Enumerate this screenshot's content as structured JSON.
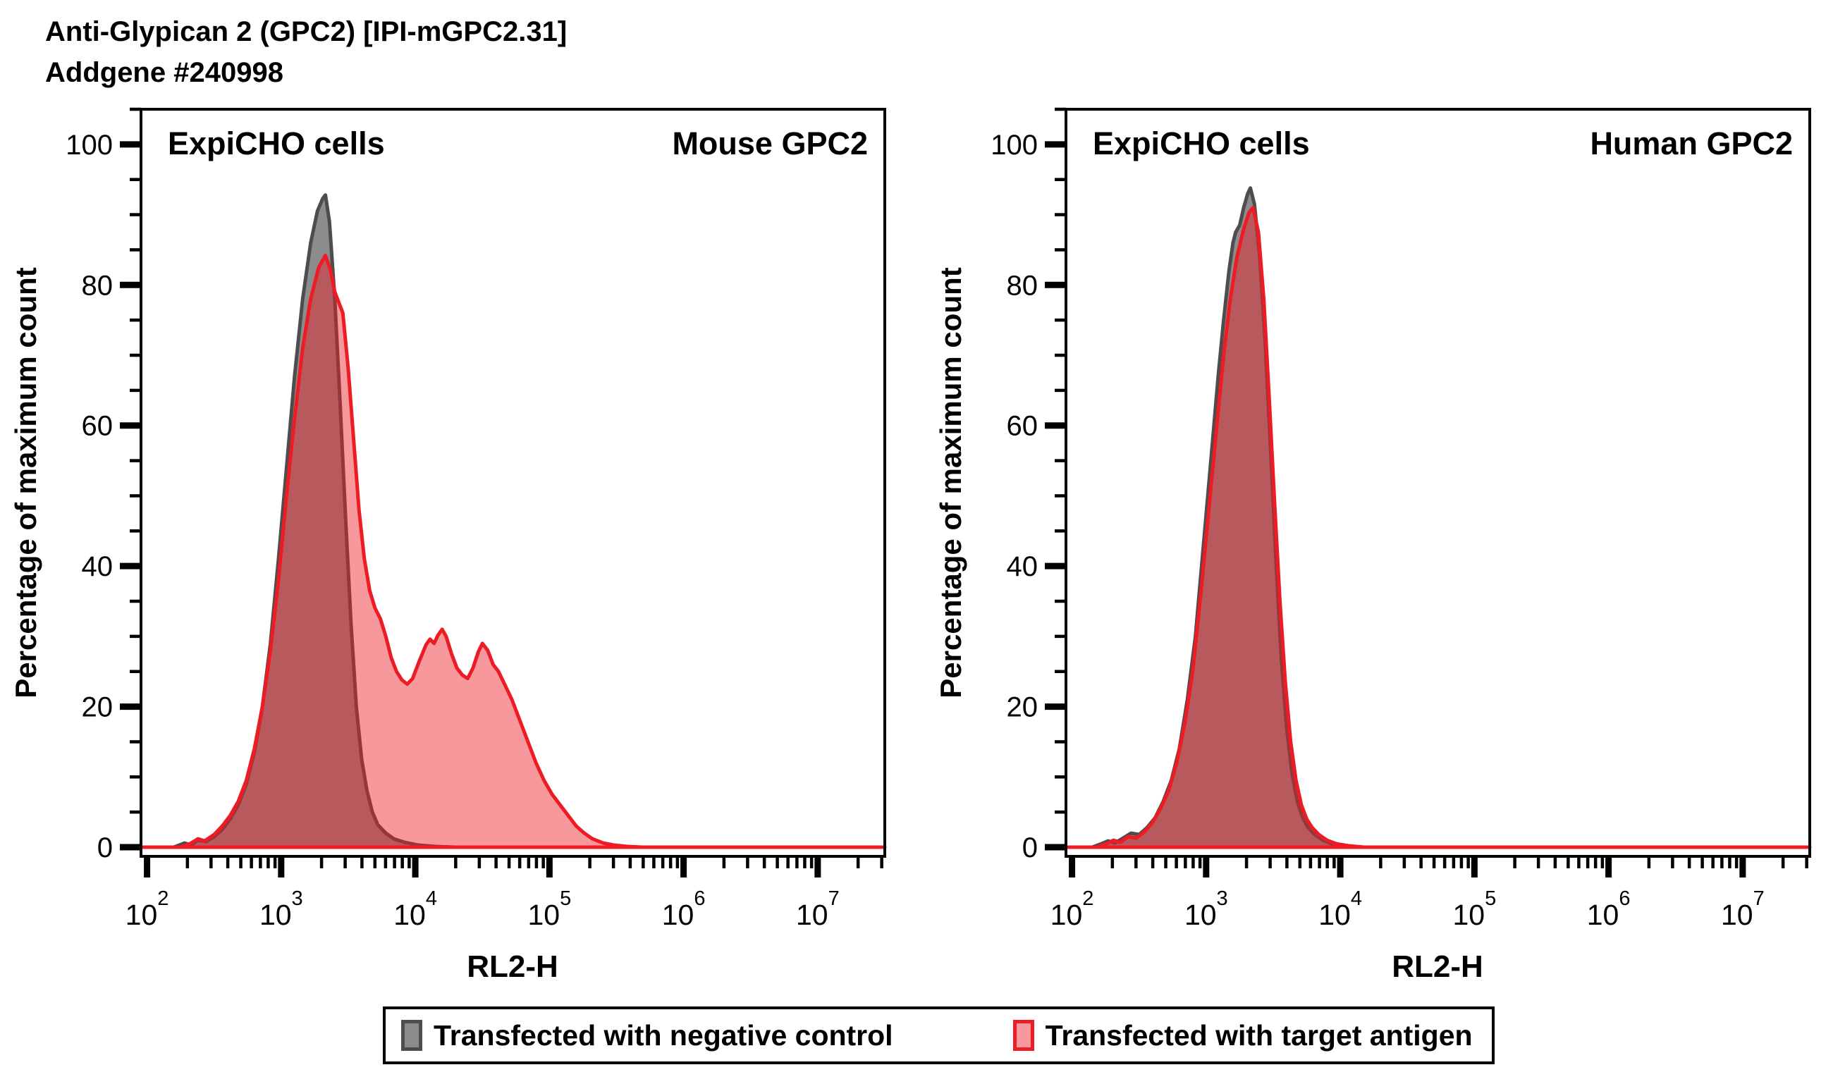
{
  "title": {
    "line1": "Anti-Glypican 2 (GPC2) [IPI-mGPC2.31]",
    "line2": "Addgene #240998"
  },
  "legend": {
    "items": [
      {
        "label": "Transfected with negative control",
        "fill": "#8c8c8c",
        "stroke": "#4d4d4d"
      },
      {
        "label": "Transfected with target antigen",
        "fill": "#f7999c",
        "stroke": "#ed1c24"
      }
    ]
  },
  "chart_data": [
    {
      "type": "area",
      "panel": "left",
      "label_left": "ExpiCHO cells",
      "label_right": "Mouse GPC2",
      "xlabel": "RL2-H",
      "ylabel": "Percentage of maximum count",
      "x_scale": "log10",
      "xlim_log10": [
        1.955,
        7.5
      ],
      "x_major_decades": [
        2,
        3,
        4,
        5,
        6,
        7
      ],
      "ylim": [
        -1.3,
        105
      ],
      "y_ticks": [
        0,
        20,
        40,
        60,
        80,
        100
      ],
      "y_minor_step": 5,
      "grid": false,
      "series": [
        {
          "name": "Transfected with negative control",
          "fill": "rgba(70,70,70,0.62)",
          "stroke": "#4d4d4d",
          "stroke_width": 5,
          "points": [
            [
              1.955,
              0
            ],
            [
              2.2,
              0
            ],
            [
              2.28,
              0.6
            ],
            [
              2.33,
              0.3
            ],
            [
              2.38,
              1.0
            ],
            [
              2.44,
              0.8
            ],
            [
              2.5,
              1.5
            ],
            [
              2.56,
              2.5
            ],
            [
              2.62,
              4
            ],
            [
              2.68,
              6
            ],
            [
              2.74,
              9
            ],
            [
              2.8,
              13.5
            ],
            [
              2.86,
              20
            ],
            [
              2.92,
              29
            ],
            [
              2.98,
              41
            ],
            [
              3.04,
              54
            ],
            [
              3.1,
              67
            ],
            [
              3.16,
              78
            ],
            [
              3.22,
              86
            ],
            [
              3.27,
              90.5
            ],
            [
              3.31,
              92.3
            ],
            [
              3.33,
              92.8
            ],
            [
              3.36,
              89
            ],
            [
              3.4,
              78
            ],
            [
              3.44,
              63
            ],
            [
              3.48,
              47
            ],
            [
              3.52,
              32
            ],
            [
              3.56,
              20
            ],
            [
              3.6,
              12.5
            ],
            [
              3.64,
              8
            ],
            [
              3.68,
              5
            ],
            [
              3.72,
              3.2
            ],
            [
              3.78,
              2
            ],
            [
              3.84,
              1.2
            ],
            [
              3.92,
              0.7
            ],
            [
              4.02,
              0.3
            ],
            [
              4.15,
              0.1
            ],
            [
              4.3,
              0
            ],
            [
              7.5,
              0
            ]
          ]
        },
        {
          "name": "Transfected with target antigen",
          "fill": "rgba(237,28,36,0.45)",
          "stroke": "#ed1c24",
          "stroke_width": 5,
          "points": [
            [
              1.955,
              0
            ],
            [
              2.25,
              0
            ],
            [
              2.32,
              0.5
            ],
            [
              2.38,
              1.2
            ],
            [
              2.43,
              0.9
            ],
            [
              2.5,
              1.8
            ],
            [
              2.56,
              3
            ],
            [
              2.62,
              4.5
            ],
            [
              2.68,
              6.5
            ],
            [
              2.74,
              9.5
            ],
            [
              2.8,
              14
            ],
            [
              2.86,
              20
            ],
            [
              2.92,
              28
            ],
            [
              2.98,
              38
            ],
            [
              3.04,
              50
            ],
            [
              3.1,
              61
            ],
            [
              3.16,
              71
            ],
            [
              3.22,
              78
            ],
            [
              3.28,
              82.5
            ],
            [
              3.33,
              84.2
            ],
            [
              3.37,
              82
            ],
            [
              3.4,
              79
            ],
            [
              3.43,
              77.5
            ],
            [
              3.46,
              76
            ],
            [
              3.5,
              68
            ],
            [
              3.54,
              58
            ],
            [
              3.58,
              48
            ],
            [
              3.62,
              41
            ],
            [
              3.66,
              36.5
            ],
            [
              3.7,
              34
            ],
            [
              3.74,
              32.5
            ],
            [
              3.78,
              30
            ],
            [
              3.82,
              27
            ],
            [
              3.86,
              25
            ],
            [
              3.9,
              23.8
            ],
            [
              3.94,
              23.2
            ],
            [
              3.98,
              24
            ],
            [
              4.03,
              26.5
            ],
            [
              4.08,
              28.8
            ],
            [
              4.11,
              29.6
            ],
            [
              4.14,
              29
            ],
            [
              4.17,
              30.2
            ],
            [
              4.2,
              31
            ],
            [
              4.23,
              30
            ],
            [
              4.27,
              27.5
            ],
            [
              4.31,
              25.5
            ],
            [
              4.35,
              24.5
            ],
            [
              4.39,
              24
            ],
            [
              4.43,
              25.5
            ],
            [
              4.47,
              27.8
            ],
            [
              4.5,
              29
            ],
            [
              4.54,
              28
            ],
            [
              4.58,
              26
            ],
            [
              4.62,
              25
            ],
            [
              4.67,
              23
            ],
            [
              4.72,
              21
            ],
            [
              4.78,
              18
            ],
            [
              4.84,
              15
            ],
            [
              4.9,
              12
            ],
            [
              4.96,
              9.5
            ],
            [
              5.02,
              7.5
            ],
            [
              5.08,
              6
            ],
            [
              5.14,
              4.5
            ],
            [
              5.2,
              3
            ],
            [
              5.26,
              2
            ],
            [
              5.32,
              1.2
            ],
            [
              5.4,
              0.6
            ],
            [
              5.48,
              0.3
            ],
            [
              5.58,
              0.1
            ],
            [
              5.7,
              0
            ],
            [
              7.5,
              0
            ]
          ]
        }
      ]
    },
    {
      "type": "area",
      "panel": "right",
      "label_left": "ExpiCHO cells",
      "label_right": "Human GPC2",
      "xlabel": "RL2-H",
      "ylabel": "Percentage of maximum count",
      "x_scale": "log10",
      "xlim_log10": [
        1.955,
        7.5
      ],
      "x_major_decades": [
        2,
        3,
        4,
        5,
        6,
        7
      ],
      "ylim": [
        -1.3,
        105
      ],
      "y_ticks": [
        0,
        20,
        40,
        60,
        80,
        100
      ],
      "y_minor_step": 5,
      "grid": false,
      "series": [
        {
          "name": "Transfected with negative control",
          "fill": "rgba(70,70,70,0.62)",
          "stroke": "#4d4d4d",
          "stroke_width": 5,
          "points": [
            [
              1.955,
              0
            ],
            [
              2.15,
              0
            ],
            [
              2.22,
              0.5
            ],
            [
              2.27,
              0.9
            ],
            [
              2.32,
              0.6
            ],
            [
              2.38,
              1.3
            ],
            [
              2.44,
              2
            ],
            [
              2.5,
              1.8
            ],
            [
              2.56,
              2.8
            ],
            [
              2.62,
              4.2
            ],
            [
              2.68,
              6.5
            ],
            [
              2.74,
              9.5
            ],
            [
              2.8,
              14
            ],
            [
              2.86,
              21
            ],
            [
              2.92,
              30
            ],
            [
              2.98,
              43
            ],
            [
              3.04,
              56
            ],
            [
              3.09,
              67
            ],
            [
              3.13,
              75
            ],
            [
              3.17,
              82
            ],
            [
              3.2,
              86
            ],
            [
              3.22,
              87.5
            ],
            [
              3.25,
              88.5
            ],
            [
              3.28,
              91
            ],
            [
              3.31,
              93
            ],
            [
              3.33,
              93.8
            ],
            [
              3.36,
              91.5
            ],
            [
              3.4,
              84
            ],
            [
              3.44,
              72
            ],
            [
              3.48,
              57
            ],
            [
              3.52,
              41
            ],
            [
              3.56,
              27
            ],
            [
              3.6,
              17
            ],
            [
              3.64,
              10.5
            ],
            [
              3.68,
              6.5
            ],
            [
              3.72,
              4.2
            ],
            [
              3.76,
              2.8
            ],
            [
              3.81,
              1.8
            ],
            [
              3.87,
              1.0
            ],
            [
              3.94,
              0.5
            ],
            [
              4.03,
              0.2
            ],
            [
              4.15,
              0
            ],
            [
              7.5,
              0
            ]
          ]
        },
        {
          "name": "Transfected with target antigen",
          "fill": "rgba(237,28,36,0.45)",
          "stroke": "#ed1c24",
          "stroke_width": 5,
          "points": [
            [
              1.955,
              0
            ],
            [
              2.18,
              0
            ],
            [
              2.25,
              0.4
            ],
            [
              2.31,
              1.0
            ],
            [
              2.36,
              0.7
            ],
            [
              2.42,
              1.5
            ],
            [
              2.48,
              1.3
            ],
            [
              2.54,
              2.2
            ],
            [
              2.6,
              3.5
            ],
            [
              2.66,
              5.5
            ],
            [
              2.72,
              8
            ],
            [
              2.78,
              12
            ],
            [
              2.84,
              17.5
            ],
            [
              2.9,
              25
            ],
            [
              2.96,
              36
            ],
            [
              3.02,
              48
            ],
            [
              3.08,
              60
            ],
            [
              3.13,
              70
            ],
            [
              3.18,
              78
            ],
            [
              3.23,
              84
            ],
            [
              3.28,
              88
            ],
            [
              3.32,
              90.3
            ],
            [
              3.35,
              91
            ],
            [
              3.39,
              87.5
            ],
            [
              3.43,
              78
            ],
            [
              3.47,
              64
            ],
            [
              3.51,
              49
            ],
            [
              3.55,
              35
            ],
            [
              3.59,
              23.5
            ],
            [
              3.63,
              15
            ],
            [
              3.67,
              9.5
            ],
            [
              3.71,
              6
            ],
            [
              3.75,
              4
            ],
            [
              3.79,
              2.8
            ],
            [
              3.84,
              1.8
            ],
            [
              3.9,
              1.0
            ],
            [
              3.97,
              0.5
            ],
            [
              4.06,
              0.2
            ],
            [
              4.18,
              0
            ],
            [
              7.5,
              0
            ]
          ]
        }
      ]
    }
  ]
}
